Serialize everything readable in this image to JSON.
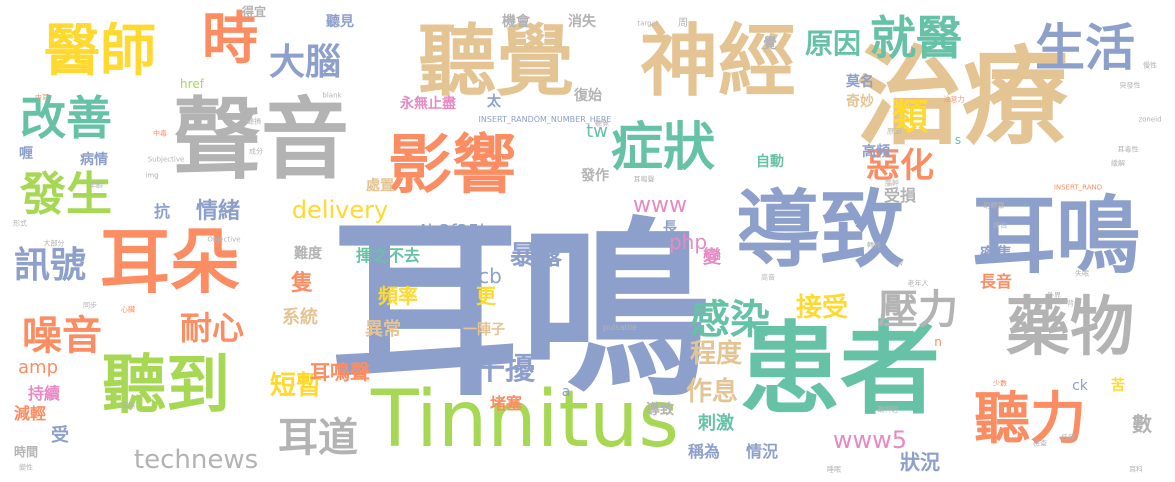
{
  "colors": {
    "blue": "#8da0cb",
    "tan": "#e5c494",
    "green": "#a6d854",
    "orange": "#fc8d62",
    "teal": "#66c2a5",
    "yellow": "#ffd92f",
    "gray": "#b3b3b3",
    "pink": "#e78ac3"
  },
  "words": [
    {
      "text": "耳鳴"
    },
    {
      "text": "治療"
    },
    {
      "text": "聽覺"
    },
    {
      "text": "神經"
    },
    {
      "text": "聲音"
    },
    {
      "text": "患者"
    },
    {
      "text": "導致"
    },
    {
      "text": "耳鳴"
    },
    {
      "text": "Tinnitus"
    },
    {
      "text": "耳朵"
    },
    {
      "text": "影響"
    },
    {
      "text": "藥物"
    },
    {
      "text": "聽到"
    },
    {
      "text": "醫師"
    },
    {
      "text": "時"
    },
    {
      "text": "聽力"
    },
    {
      "text": "症狀"
    },
    {
      "text": "生活"
    },
    {
      "text": "就醫"
    },
    {
      "text": "改善"
    },
    {
      "text": "發生"
    },
    {
      "text": "感染"
    },
    {
      "text": "大腦"
    },
    {
      "text": "壓力"
    },
    {
      "text": "噪音"
    },
    {
      "text": "訊號"
    },
    {
      "text": "原因"
    },
    {
      "text": "惡化"
    },
    {
      "text": "類"
    },
    {
      "text": "耳道"
    },
    {
      "text": "technews"
    },
    {
      "text": "耐心"
    },
    {
      "text": "儀器"
    },
    {
      "text": "接受"
    },
    {
      "text": "干擾"
    },
    {
      "text": "作息"
    },
    {
      "text": "程度"
    },
    {
      "text": "短暫"
    },
    {
      "text": "暴露"
    },
    {
      "text": "delivery"
    },
    {
      "text": "www5"
    },
    {
      "text": "情緒"
    },
    {
      "text": "www"
    },
    {
      "text": "狀況"
    },
    {
      "text": "耳鳴聲"
    },
    {
      "text": "頻率"
    },
    {
      "text": "系統"
    },
    {
      "text": "異常"
    },
    {
      "text": "a4b3f35b"
    },
    {
      "text": "揮之不去"
    },
    {
      "text": "php"
    },
    {
      "text": "cb"
    },
    {
      "text": "更"
    },
    {
      "text": "tw"
    },
    {
      "text": "amp"
    },
    {
      "text": "持續"
    },
    {
      "text": "減輕"
    },
    {
      "text": "受"
    },
    {
      "text": "刺激"
    },
    {
      "text": "堵塞"
    },
    {
      "text": "稱為"
    },
    {
      "text": "情況"
    },
    {
      "text": "數"
    },
    {
      "text": "長音"
    },
    {
      "text": "密集"
    },
    {
      "text": "受損"
    },
    {
      "text": "高頻"
    },
    {
      "text": "自動"
    },
    {
      "text": "發作"
    },
    {
      "text": "處置"
    },
    {
      "text": "病情"
    },
    {
      "text": "抗"
    },
    {
      "text": "難度"
    },
    {
      "text": "隻"
    },
    {
      "text": "一陣子"
    },
    {
      "text": "變"
    },
    {
      "text": "長"
    },
    {
      "text": "聽見"
    },
    {
      "text": "覺"
    },
    {
      "text": "莫名"
    },
    {
      "text": "奇妙"
    },
    {
      "text": "時間"
    },
    {
      "text": "復始"
    },
    {
      "text": "永無止盡"
    },
    {
      "text": "太"
    },
    {
      "text": "消失"
    },
    {
      "text": "機會"
    },
    {
      "text": "得宜"
    },
    {
      "text": "href"
    },
    {
      "text": "INSERT_RANDOM_NUMBER_HERE"
    },
    {
      "text": "導致"
    },
    {
      "text": "s"
    },
    {
      "text": "n"
    },
    {
      "text": "ck"
    },
    {
      "text": "苦"
    },
    {
      "text": "a"
    },
    {
      "text": "喱"
    },
    {
      "text": "Subjective"
    },
    {
      "text": "Objective"
    },
    {
      "text": "pulsatile"
    },
    {
      "text": "target"
    },
    {
      "text": "blank"
    },
    {
      "text": "INSERT_RAND"
    },
    {
      "text": "zoneid"
    },
    {
      "text": "img"
    },
    {
      "text": "src"
    },
    {
      "text": "aw"
    },
    {
      "text": "中耳"
    },
    {
      "text": "周"
    },
    {
      "text": "成分"
    },
    {
      "text": "年齡"
    },
    {
      "text": "形式"
    },
    {
      "text": "心臟"
    },
    {
      "text": "同步"
    },
    {
      "text": "大部分"
    },
    {
      "text": "少數"
    },
    {
      "text": "變性"
    },
    {
      "text": "中毒"
    },
    {
      "text": "原因"
    },
    {
      "text": "耳毒性"
    },
    {
      "text": "老年人"
    },
    {
      "text": "睡眠"
    },
    {
      "text": "聽神經"
    },
    {
      "text": "高音"
    },
    {
      "text": "低頻"
    },
    {
      "text": "耳鳴聲"
    },
    {
      "text": "聽覺"
    },
    {
      "text": "腦幹"
    },
    {
      "text": "慢性"
    },
    {
      "text": "外界"
    },
    {
      "text": "背景"
    },
    {
      "text": "注意力"
    },
    {
      "text": "頭痛"
    },
    {
      "text": "失眠"
    },
    {
      "text": "突發性"
    },
    {
      "text": "聽損"
    },
    {
      "text": "評估"
    },
    {
      "text": "檢查"
    },
    {
      "text": "助聽器"
    },
    {
      "text": "轉移"
    },
    {
      "text": "緩解"
    },
    {
      "text": "耳科"
    },
    {
      "text": "音量"
    }
  ]
}
